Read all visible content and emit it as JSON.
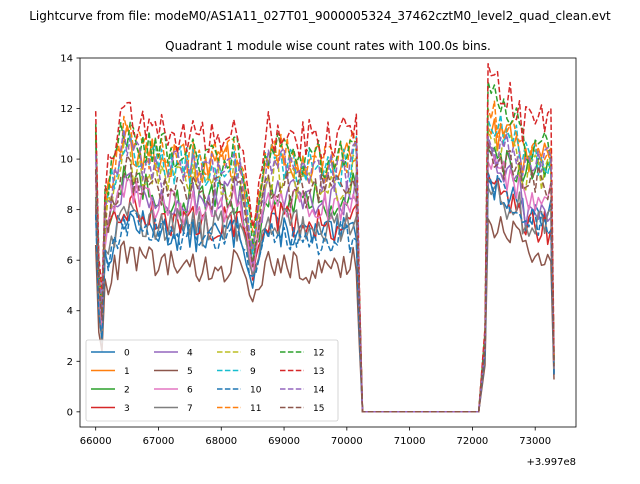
{
  "suptitle": "Lightcurve from file: modeM0/AS1A11_027T01_9000005324_37462cztM0_level2_quad_clean.evt",
  "chart_data": {
    "type": "line",
    "title": "Quadrant 1 module wise count rates with 100.0s bins.",
    "xlabel": "",
    "ylabel": "",
    "x_offset_label": "+3.997e8",
    "xlim": [
      65750,
      73650
    ],
    "ylim": [
      -0.6,
      14
    ],
    "xticks": [
      66000,
      67000,
      68000,
      69000,
      70000,
      71000,
      72000,
      73000
    ],
    "xtick_labels": [
      "66000",
      "67000",
      "68000",
      "69000",
      "70000",
      "71000",
      "72000",
      "73000"
    ],
    "yticks": [
      0,
      2,
      4,
      6,
      8,
      10,
      12,
      14
    ],
    "ytick_labels": [
      "0",
      "2",
      "4",
      "6",
      "8",
      "10",
      "12",
      "14"
    ],
    "grid": false,
    "legend_position": "lower-left",
    "legend_columns": 4,
    "time_segments": [
      [
        66000,
        70200
      ],
      [
        72100,
        73300
      ]
    ],
    "series": [
      {
        "name": "0",
        "color": "#1f77b4",
        "dash": "solid",
        "level": 7.1,
        "start": 8.1,
        "dip": 5.2,
        "peak": 9.0,
        "end2": 7.8
      },
      {
        "name": "1",
        "color": "#ff7f0e",
        "dash": "solid",
        "level": 9.9,
        "start": 11.0,
        "dip": 6.4,
        "peak": 11.0,
        "end2": 10.0
      },
      {
        "name": "2",
        "color": "#2ca02c",
        "dash": "solid",
        "level": 8.5,
        "start": 11.1,
        "dip": 5.6,
        "peak": 10.2,
        "end2": 9.4
      },
      {
        "name": "3",
        "color": "#d62728",
        "dash": "solid",
        "level": 7.6,
        "start": 8.2,
        "dip": 5.5,
        "peak": 9.1,
        "end2": 7.3
      },
      {
        "name": "4",
        "color": "#9467bd",
        "dash": "solid",
        "level": 8.5,
        "start": 9.4,
        "dip": 5.8,
        "peak": 10.4,
        "end2": 8.0
      },
      {
        "name": "5",
        "color": "#8c564b",
        "dash": "solid",
        "level": 5.8,
        "start": 6.6,
        "dip": 4.1,
        "peak": 7.4,
        "end2": 6.4
      },
      {
        "name": "6",
        "color": "#e377c2",
        "dash": "solid",
        "level": 8.2,
        "start": 9.5,
        "dip": 5.6,
        "peak": 9.6,
        "end2": 8.4
      },
      {
        "name": "7",
        "color": "#7f7f7f",
        "dash": "solid",
        "level": 7.4,
        "start": 8.5,
        "dip": 5.4,
        "peak": 8.6,
        "end2": 7.6
      },
      {
        "name": "8",
        "color": "#bcbd22",
        "dash": "dashed",
        "level": 9.2,
        "start": 10.3,
        "dip": 6.2,
        "peak": 10.8,
        "end2": 9.4
      },
      {
        "name": "9",
        "color": "#17becf",
        "dash": "dashed",
        "level": 9.8,
        "start": 10.6,
        "dip": 6.5,
        "peak": 11.2,
        "end2": 10.1
      },
      {
        "name": "10",
        "color": "#1f77b4",
        "dash": "dashed",
        "level": 7.0,
        "start": 7.8,
        "dip": 5.3,
        "peak": 9.1,
        "end2": 7.4
      },
      {
        "name": "11",
        "color": "#ff7f0e",
        "dash": "dashed",
        "level": 10.1,
        "start": 11.3,
        "dip": 6.7,
        "peak": 11.6,
        "end2": 10.4
      },
      {
        "name": "12",
        "color": "#2ca02c",
        "dash": "dashed",
        "level": 10.2,
        "start": 11.4,
        "dip": 6.8,
        "peak": 12.6,
        "end2": 10.6
      },
      {
        "name": "13",
        "color": "#d62728",
        "dash": "dashed",
        "level": 10.9,
        "start": 11.9,
        "dip": 7.2,
        "peak": 13.3,
        "end2": 11.4
      },
      {
        "name": "14",
        "color": "#9467bd",
        "dash": "dashed",
        "level": 9.6,
        "start": 10.2,
        "dip": 6.0,
        "peak": 10.5,
        "end2": 9.8
      },
      {
        "name": "15",
        "color": "#8c564b",
        "dash": "dashed",
        "level": 8.8,
        "start": 9.6,
        "dip": 5.9,
        "peak": 10.2,
        "end2": 9.0
      }
    ]
  }
}
